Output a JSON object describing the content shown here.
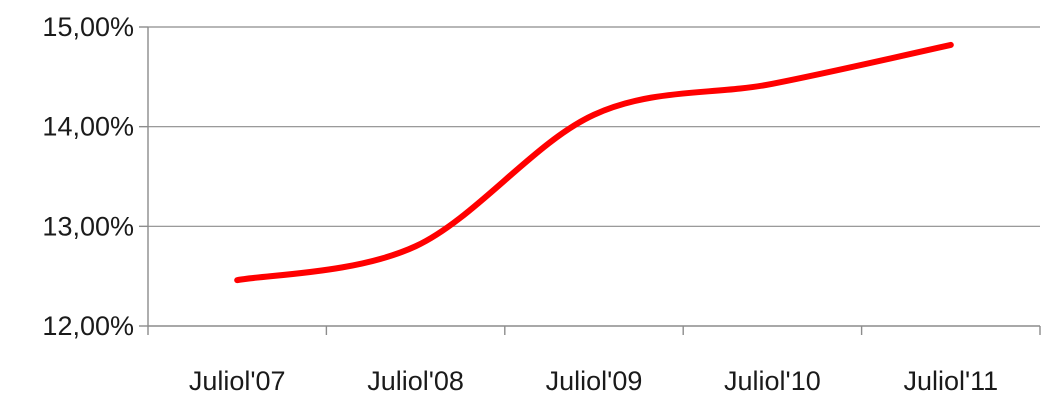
{
  "chart_data": {
    "type": "line",
    "title": "",
    "xlabel": "",
    "ylabel": "",
    "categories": [
      "Juliol'07",
      "Juliol'08",
      "Juliol'09",
      "Juliol'10",
      "Juliol'11"
    ],
    "series": [
      {
        "values": [
          12.46,
          12.8,
          14.12,
          14.43,
          14.82
        ],
        "color": "#ff0000",
        "smooth": true
      }
    ],
    "ylim": [
      12.0,
      15.0
    ],
    "yticks": [
      12.0,
      13.0,
      14.0,
      15.0
    ],
    "ytick_labels": [
      "12,00%",
      "13,00%",
      "14,00%",
      "15,00%"
    ],
    "grid": true,
    "legend": "none",
    "colors": {
      "grid": "#8c8c8c",
      "text": "#1a1a1a",
      "background": "#ffffff"
    }
  }
}
